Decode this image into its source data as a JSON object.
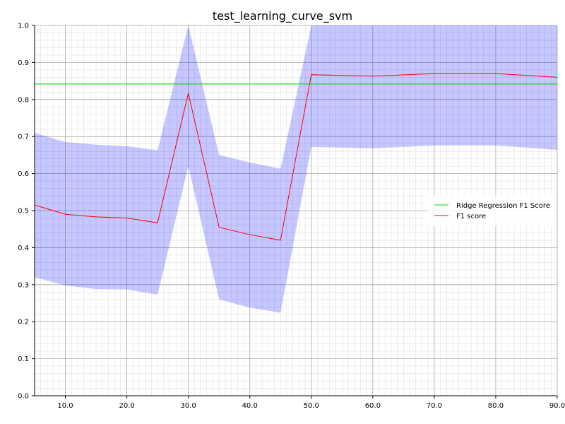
{
  "chart_data": {
    "type": "line",
    "title": "test_learning_curve_svm",
    "xlabel": "",
    "ylabel": "",
    "xlim": [
      5,
      90
    ],
    "ylim": [
      0.0,
      1.0
    ],
    "grid": true,
    "x_ticks": [
      10,
      20,
      30,
      40,
      50,
      60,
      70,
      80,
      90
    ],
    "x_tick_labels": [
      "10.0",
      "20.0",
      "30.0",
      "40.0",
      "50.0",
      "60.0",
      "70.0",
      "80.0",
      "90.0"
    ],
    "y_ticks": [
      0.0,
      0.1,
      0.2,
      0.3,
      0.4,
      0.5,
      0.6,
      0.7,
      0.8,
      0.9,
      1.0
    ],
    "y_tick_labels": [
      "0.0",
      "0.1",
      "0.2",
      "0.3",
      "0.4",
      "0.5",
      "0.6",
      "0.7",
      "0.8",
      "0.9",
      "1.0"
    ],
    "x": [
      5,
      10,
      15,
      20,
      25,
      30,
      35,
      40,
      45,
      50,
      60,
      70,
      80,
      90
    ],
    "series": [
      {
        "name": "F1 score",
        "color": "#ff0000",
        "values": [
          0.515,
          0.49,
          0.483,
          0.48,
          0.467,
          0.817,
          0.455,
          0.435,
          0.42,
          0.867,
          0.863,
          0.87,
          0.87,
          0.86
        ]
      },
      {
        "name": "Ridge Regression F1 Score",
        "color": "#00dd00",
        "constant": 0.842
      }
    ],
    "band": {
      "color": "#0000ff",
      "opacity": 0.22,
      "upper": [
        0.71,
        0.685,
        0.678,
        0.674,
        0.663,
        1.0,
        0.65,
        0.63,
        0.613,
        1.0,
        1.0,
        1.0,
        1.0,
        1.0
      ],
      "lower": [
        0.32,
        0.298,
        0.288,
        0.287,
        0.273,
        0.62,
        0.26,
        0.238,
        0.224,
        0.672,
        0.668,
        0.676,
        0.676,
        0.664
      ]
    },
    "legend": {
      "placement": "right",
      "entries": [
        {
          "label": "Ridge Regression F1 Score",
          "color": "#00dd00"
        },
        {
          "label": "F1 score",
          "color": "#ff0000"
        }
      ]
    }
  }
}
